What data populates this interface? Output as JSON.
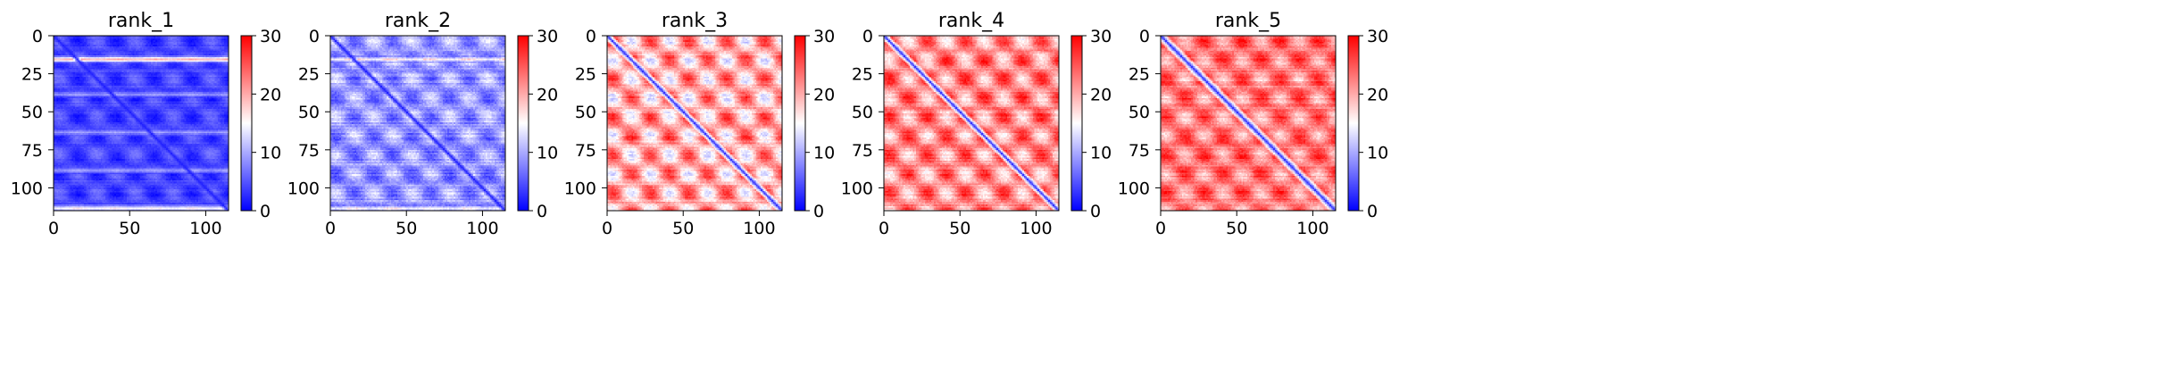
{
  "figure": {
    "colormap": {
      "name": "bwr",
      "low": "#0000ff",
      "mid": "#ffffff",
      "high": "#ff0000"
    }
  },
  "chart_data": [
    {
      "type": "heatmap",
      "title": "rank_1",
      "size": 115,
      "xlim": [
        0,
        115
      ],
      "ylim": [
        115,
        0
      ],
      "xticks": [
        0,
        50,
        100
      ],
      "yticks": [
        0,
        25,
        50,
        75,
        100
      ],
      "color_range": [
        0,
        30
      ],
      "colorbar_ticks": [
        0,
        10,
        20,
        30
      ],
      "pattern": {
        "base": 4,
        "diag_dist": 2,
        "diag_width": 3,
        "stripes": [
          [
            15,
            30
          ],
          [
            38,
            13
          ],
          [
            63,
            13
          ],
          [
            88,
            13
          ],
          [
            113,
            24
          ]
        ],
        "blob_strength": 2.5,
        "noise": 1.5
      }
    },
    {
      "type": "heatmap",
      "title": "rank_2",
      "size": 115,
      "xlim": [
        0,
        115
      ],
      "ylim": [
        115,
        0
      ],
      "xticks": [
        0,
        50,
        100
      ],
      "yticks": [
        0,
        25,
        50,
        75,
        100
      ],
      "color_range": [
        0,
        30
      ],
      "colorbar_ticks": [
        0,
        10,
        20,
        30
      ],
      "pattern": {
        "base": 9,
        "diag_dist": 2,
        "diag_width": 3,
        "stripes": [
          [
            15,
            20
          ],
          [
            113,
            20
          ]
        ],
        "blob_strength": 4,
        "noise": 3
      }
    },
    {
      "type": "heatmap",
      "title": "rank_3",
      "size": 115,
      "xlim": [
        0,
        115
      ],
      "ylim": [
        115,
        0
      ],
      "xticks": [
        0,
        50,
        100
      ],
      "yticks": [
        0,
        25,
        50,
        75,
        100
      ],
      "color_range": [
        0,
        30
      ],
      "colorbar_ticks": [
        0,
        10,
        20,
        30
      ],
      "pattern": {
        "base": 20,
        "diag_dist": 3,
        "diag_width": 4,
        "stripes": [],
        "blob_strength": 7,
        "noise": 3
      }
    },
    {
      "type": "heatmap",
      "title": "rank_4",
      "size": 115,
      "xlim": [
        0,
        115
      ],
      "ylim": [
        115,
        0
      ],
      "xticks": [
        0,
        50,
        100
      ],
      "yticks": [
        0,
        25,
        50,
        75,
        100
      ],
      "color_range": [
        0,
        30
      ],
      "colorbar_ticks": [
        0,
        10,
        20,
        30
      ],
      "pattern": {
        "base": 22,
        "diag_dist": 3,
        "diag_width": 4,
        "stripes": [],
        "blob_strength": 6,
        "noise": 3
      }
    },
    {
      "type": "heatmap",
      "title": "rank_5",
      "size": 115,
      "xlim": [
        0,
        115
      ],
      "ylim": [
        115,
        0
      ],
      "xticks": [
        0,
        50,
        100
      ],
      "yticks": [
        0,
        25,
        50,
        75,
        100
      ],
      "color_range": [
        0,
        30
      ],
      "colorbar_ticks": [
        0,
        10,
        20,
        30
      ],
      "pattern": {
        "base": 23,
        "diag_dist": 3,
        "diag_width": 5,
        "stripes": [],
        "blob_strength": 5,
        "noise": 3
      }
    }
  ]
}
